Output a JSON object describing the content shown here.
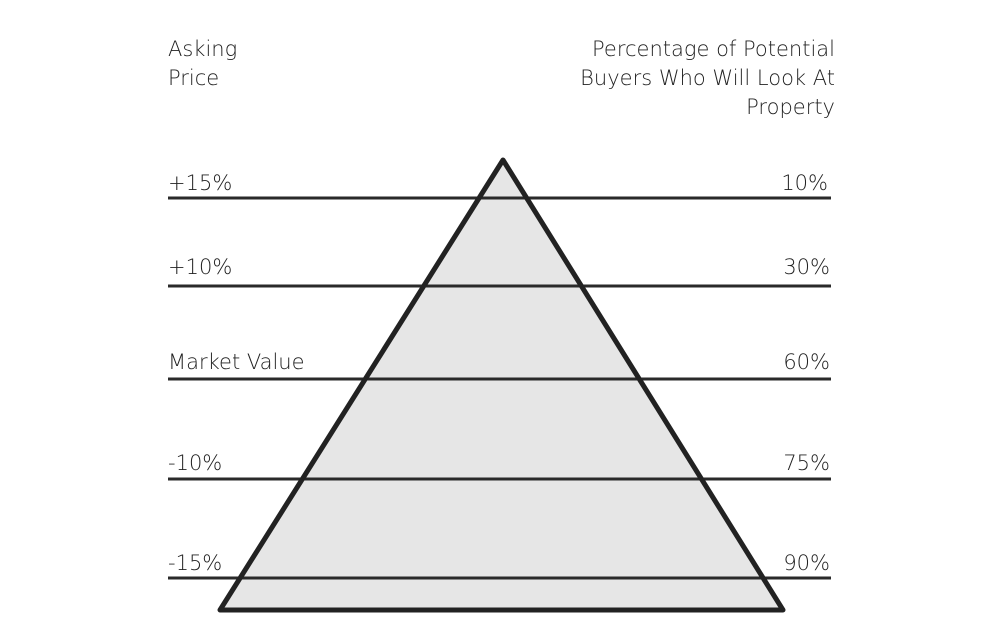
{
  "header": {
    "left": [
      "Asking",
      "Price"
    ],
    "right": [
      "Percentage of Potential",
      "Buyers Who Will Look At",
      "Property"
    ]
  },
  "rows": [
    {
      "left": "+15%",
      "right": "10%"
    },
    {
      "left": "+10%",
      "right": "30%"
    },
    {
      "left": "Market Value",
      "right": "60%"
    },
    {
      "left": "-10%",
      "right": "75%"
    },
    {
      "left": "-15%",
      "right": "90%"
    }
  ]
}
